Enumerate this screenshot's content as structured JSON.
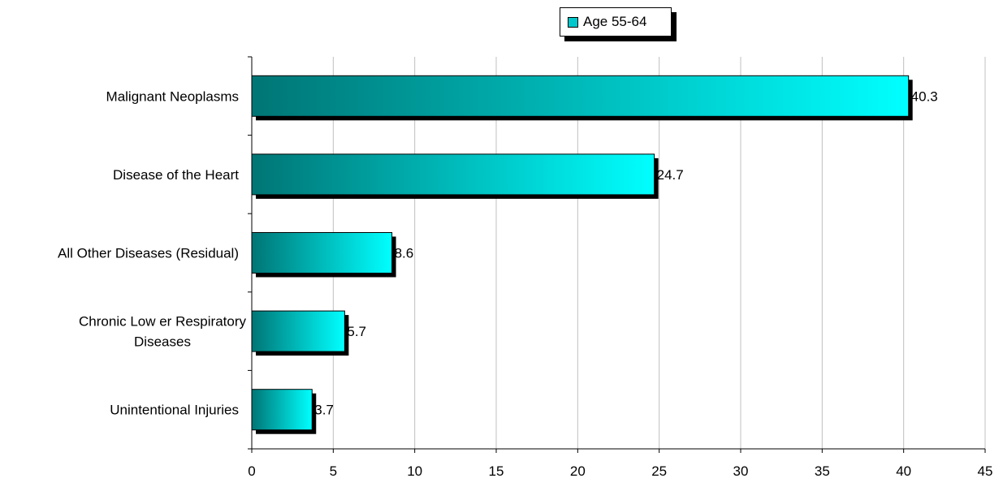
{
  "legend": {
    "label": "Age 55-64",
    "swatch_color": "#00c8cc"
  },
  "colors": {
    "bar_start": "#007575",
    "bar_end": "#00ffff",
    "shadow": "#000000",
    "grid": "#c0c0c0"
  },
  "chart_data": {
    "type": "bar",
    "orientation": "horizontal",
    "categories": [
      "Malignant Neoplasms",
      "Disease of the Heart",
      "All Other Diseases (Residual)",
      "Chronic Low er Respiratory Diseases",
      "Unintentional Injuries"
    ],
    "series": [
      {
        "name": "Age 55-64",
        "values": [
          40.3,
          24.7,
          8.6,
          5.7,
          3.7
        ]
      }
    ],
    "data_labels": [
      "40.3",
      "24.7",
      "8.6",
      "5.7",
      "3.7"
    ],
    "x_ticks": [
      0,
      5,
      10,
      15,
      20,
      25,
      30,
      35,
      40,
      45
    ],
    "xlim": [
      0,
      45
    ],
    "grid": true,
    "legend_position": "top"
  }
}
